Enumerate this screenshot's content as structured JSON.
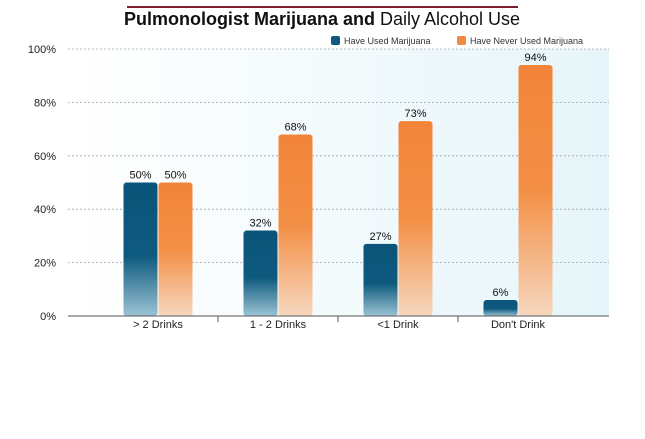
{
  "chart_data": {
    "type": "bar",
    "title_bold": "Pulmonologist Marijuana and",
    "title_regular": "Daily Alcohol Use",
    "categories": [
      "> 2 Drinks",
      "1 - 2 Drinks",
      "<1 Drink",
      "Don't Drink"
    ],
    "series": [
      {
        "name": "Have Used Marijuana",
        "values": [
          50,
          32,
          27,
          6
        ],
        "color": "#0e5a7e"
      },
      {
        "name": "Have Never Used Marijuana",
        "values": [
          50,
          68,
          73,
          94
        ],
        "color": "#f2893e"
      }
    ],
    "value_labels": {
      "0": [
        "50%",
        "32%",
        "27%",
        "6%"
      ],
      "1": [
        "50%",
        "68%",
        "73%",
        "94%"
      ]
    },
    "y_ticks": [
      0,
      20,
      40,
      60,
      80,
      100
    ],
    "y_tick_labels": [
      "0%",
      "20%",
      "40%",
      "60%",
      "80%",
      "100%"
    ],
    "ylim": [
      0,
      100
    ],
    "grid": true,
    "legend_position": "top-right",
    "xlabel": "",
    "ylabel": ""
  }
}
